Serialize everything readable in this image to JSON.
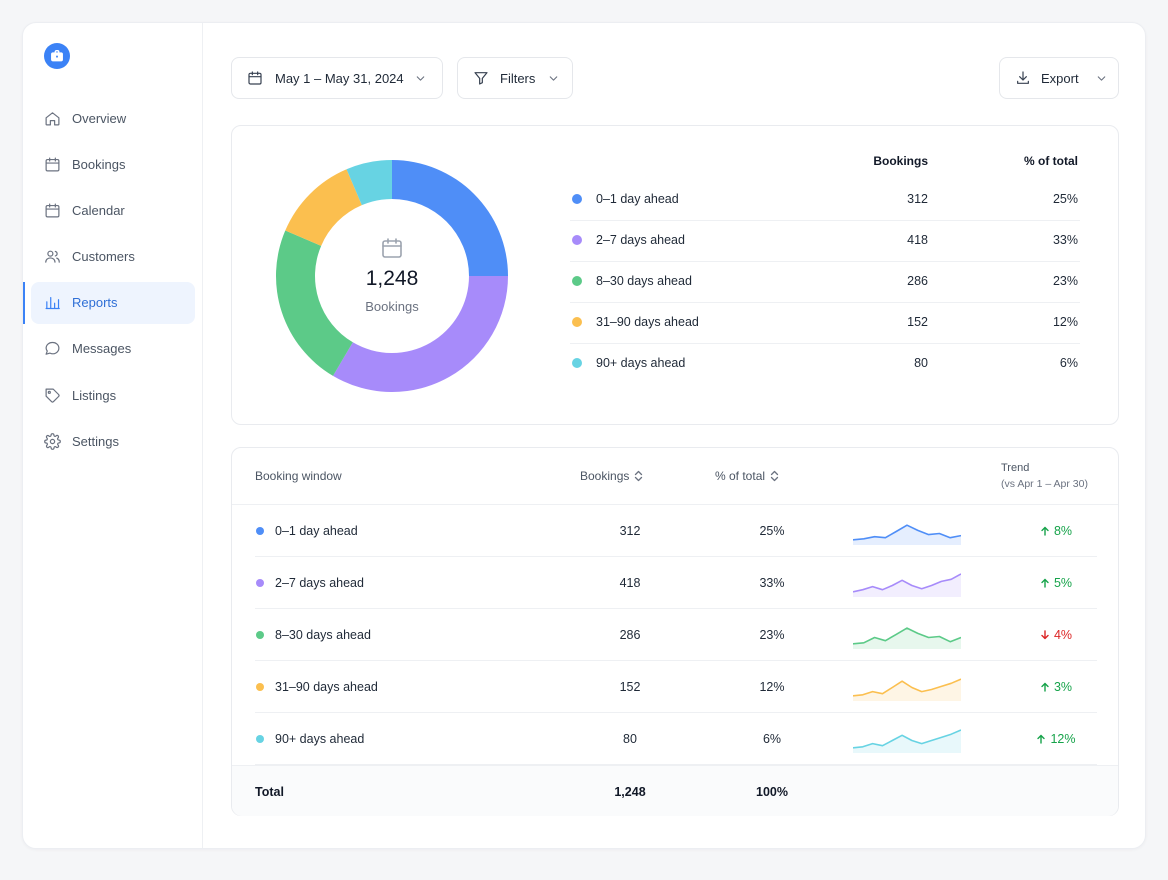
{
  "sidebar": {
    "logo_icon": "briefcase-icon",
    "items": [
      {
        "label": "Overview",
        "icon": "home-icon"
      },
      {
        "label": "Bookings",
        "icon": "calendar-icon"
      },
      {
        "label": "Calendar",
        "icon": "calendar-icon"
      },
      {
        "label": "Customers",
        "icon": "users-icon"
      },
      {
        "label": "Reports",
        "icon": "bar-chart-icon",
        "active": true
      },
      {
        "label": "Messages",
        "icon": "message-icon"
      },
      {
        "label": "Listings",
        "icon": "tag-icon"
      },
      {
        "label": "Settings",
        "icon": "gear-icon"
      }
    ]
  },
  "toolbar": {
    "date_range": "May 1 – May 31, 2024",
    "filters_label": "Filters",
    "export_label": "Export"
  },
  "summary": {
    "center_value": "1,248",
    "center_label": "Bookings",
    "col_bookings": "Bookings",
    "col_pct": "% of total"
  },
  "table": {
    "col_window": "Booking window",
    "col_bookings": "Bookings",
    "col_pct": "% of total",
    "col_trend": "Trend",
    "col_trend_sub": "(vs Apr 1 – Apr 30)",
    "total_label": "Total",
    "total_bookings": "1,248",
    "total_pct": "100%"
  },
  "rows": [
    {
      "label": "0–1 day ahead",
      "bookings": "312",
      "pct": "25%",
      "trend": "8%",
      "direction": "up",
      "color": "#4f8ef7",
      "spark": [
        2,
        2.5,
        3.5,
        3,
        6,
        9,
        6.5,
        4.5,
        5,
        3,
        4
      ]
    },
    {
      "label": "2–7 days ahead",
      "bookings": "418",
      "pct": "33%",
      "trend": "5%",
      "direction": "up",
      "color": "#a78bfa",
      "spark": [
        2,
        3,
        4.5,
        3,
        5,
        7.5,
        5,
        3.5,
        5,
        7,
        8,
        10.5
      ]
    },
    {
      "label": "8–30 days ahead",
      "bookings": "286",
      "pct": "23%",
      "trend": "4%",
      "direction": "down",
      "color": "#5cca88",
      "spark": [
        2,
        2.5,
        5,
        3.5,
        6.5,
        9.5,
        7,
        5,
        5.5,
        3,
        5
      ]
    },
    {
      "label": "31–90 days ahead",
      "bookings": "152",
      "pct": "12%",
      "trend": "3%",
      "direction": "up",
      "color": "#fbbf4f",
      "spark": [
        2,
        2.5,
        4,
        3,
        6,
        9,
        6,
        4,
        5,
        6.5,
        8,
        10
      ]
    },
    {
      "label": "90+ days ahead",
      "bookings": "80",
      "pct": "6%",
      "trend": "12%",
      "direction": "up",
      "color": "#67d3e3",
      "spark": [
        2,
        2.5,
        4,
        3,
        5.5,
        8,
        5.5,
        4,
        5.5,
        7,
        8.5,
        10.5
      ]
    }
  ],
  "chart_data": {
    "type": "pie",
    "categories": [
      "0–1 day ahead",
      "2–7 days ahead",
      "8–30 days ahead",
      "31–90 days ahead",
      "90+ days ahead"
    ],
    "values": [
      312,
      418,
      286,
      152,
      80
    ],
    "colors": [
      "#4f8ef7",
      "#a78bfa",
      "#5cca88",
      "#fbbf4f",
      "#67d3e3"
    ],
    "donut": true,
    "legend": "right"
  }
}
